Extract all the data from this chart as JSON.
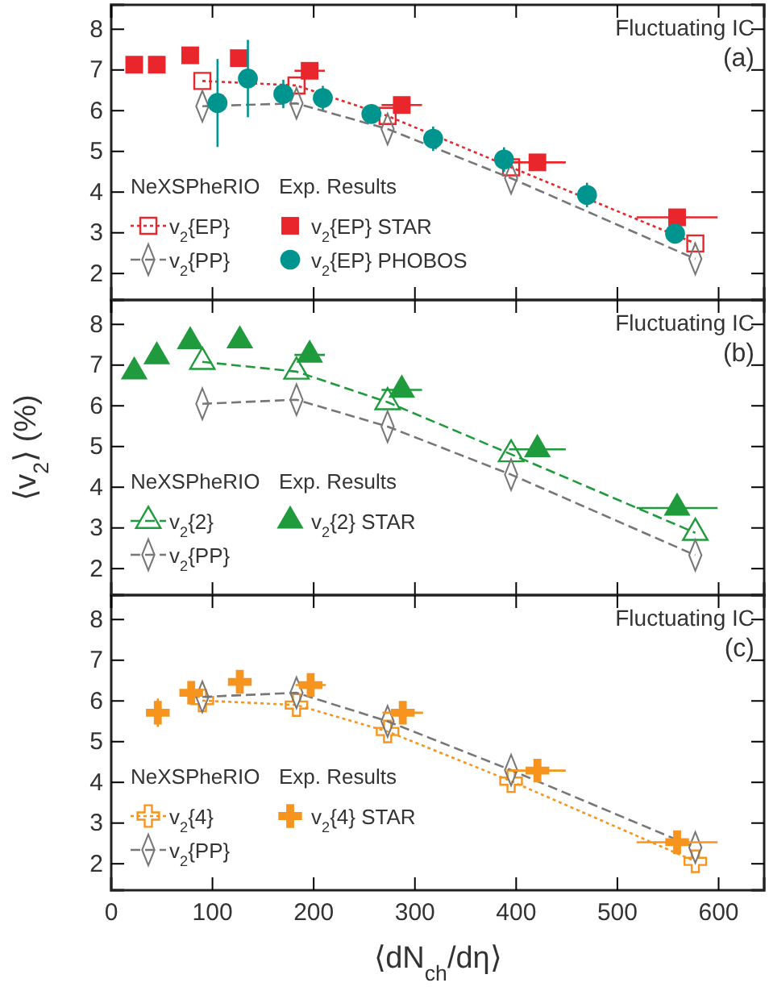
{
  "chart_data": [
    {
      "type": "scatter",
      "xlim": [
        0,
        645
      ],
      "ylim": [
        1.35,
        8.6
      ],
      "yticks": [
        2,
        3,
        4,
        5,
        6,
        7,
        8
      ],
      "xticks": [
        0,
        100,
        200,
        300,
        400,
        500,
        600
      ],
      "tick_labels": "y",
      "legend": "bottom left",
      "legend_title": "NeXSPheRIO",
      "annotations": [
        "Fluctuating IC",
        "(a)",
        "Exp. Results"
      ],
      "grid": false,
      "series": [
        {
          "name": "v$_{2}${EP}",
          "type": "line",
          "marker": "square",
          "line_style": "dotted",
          "color": "#e8262b",
          "x": [
            90,
            183,
            273,
            395,
            577
          ],
          "values": [
            6.73,
            6.62,
            5.87,
            4.61,
            2.74
          ]
        },
        {
          "name": "v$_{2}${PP}",
          "type": "line",
          "marker": "diamond",
          "line_style": "dashed",
          "color": "#777777",
          "x": [
            90,
            183,
            273,
            395,
            577
          ],
          "values": [
            6.11,
            6.18,
            5.55,
            4.34,
            2.36
          ]
        },
        {
          "name": "v$_{2}${EP} STAR",
          "marker": "square",
          "color": "#e8262b",
          "x": [
            22.7,
            45,
            78,
            126,
            196,
            287,
            421,
            559
          ],
          "values": [
            7.13,
            7.13,
            7.36,
            7.29,
            6.98,
            6.14,
            4.73,
            3.38
          ],
          "xerrors": [
            null,
            null,
            null,
            null,
            15,
            20,
            28,
            40
          ]
        },
        {
          "name": "v$_{2}${EP} PHOBOS",
          "marker": "circle",
          "color": "#00948f",
          "x": [
            105,
            135,
            170,
            209,
            257,
            318,
            388,
            470,
            557
          ],
          "values": [
            6.19,
            6.79,
            6.41,
            6.31,
            5.92,
            5.31,
            4.8,
            3.93,
            2.98
          ],
          "errors": [
            1.08,
            0.95,
            0.35,
            0.3,
            0.1,
            0.3,
            0.3,
            0.3,
            0.25
          ]
        }
      ]
    },
    {
      "type": "scatter",
      "xlim": [
        0,
        645
      ],
      "ylim": [
        1.35,
        8.6
      ],
      "yticks": [
        2,
        3,
        4,
        5,
        6,
        7,
        8
      ],
      "xticks": [
        0,
        100,
        200,
        300,
        400,
        500,
        600
      ],
      "tick_labels": "y",
      "legend": "bottom left",
      "legend_title": "NeXSPheRIO",
      "annotations": [
        "Fluctuating IC",
        "(b)",
        "Exp. Results"
      ],
      "grid": false,
      "ylabel": "⟨v$_{2}$⟩ (%)",
      "series": [
        {
          "name": "v$_{2}${2}",
          "type": "line",
          "marker": "triangle",
          "line_style": "dashed",
          "color": "#1f9a3c",
          "x": [
            90,
            183,
            273,
            395,
            577
          ],
          "values": [
            7.08,
            6.84,
            6.09,
            4.81,
            2.88
          ]
        },
        {
          "name": "v$_{2}${PP}",
          "type": "line",
          "marker": "diamond",
          "line_style": "dashed",
          "color": "#777777",
          "x": [
            90,
            183,
            273,
            395,
            577
          ],
          "values": [
            6.05,
            6.15,
            5.49,
            4.31,
            2.33
          ]
        },
        {
          "name": "v$_{2}${2} STAR",
          "marker": "triangle",
          "color": "#1f9a3c",
          "x": [
            22.7,
            45,
            78,
            127,
            196,
            287,
            421,
            559
          ],
          "values": [
            6.84,
            7.21,
            7.58,
            7.6,
            7.25,
            6.39,
            4.93,
            3.49
          ],
          "xerrors": [
            null,
            null,
            null,
            null,
            15,
            20,
            28,
            40
          ]
        }
      ]
    },
    {
      "type": "scatter",
      "xlim": [
        0,
        645
      ],
      "ylim": [
        1.35,
        8.6
      ],
      "yticks": [
        2,
        3,
        4,
        5,
        6,
        7,
        8
      ],
      "xticks": [
        0,
        100,
        200,
        300,
        400,
        500,
        600
      ],
      "legend": "bottom left",
      "legend_title": "NeXSPheRIO",
      "annotations": [
        "Fluctuating IC",
        "(c)",
        "Exp. Results"
      ],
      "grid": false,
      "xlabel": "⟨dN$_{ch}$/dη⟩",
      "series": [
        {
          "name": "v$_{2}${4}",
          "type": "line",
          "marker": "cross",
          "line_style": "dotted",
          "color": "#f7941d",
          "x": [
            90,
            183,
            273,
            395,
            577
          ],
          "values": [
            6.01,
            5.9,
            5.25,
            4.03,
            2.06
          ]
        },
        {
          "name": "v$_{2}${PP}",
          "type": "line",
          "marker": "diamond",
          "line_style": "dashed",
          "color": "#777777",
          "x": [
            90,
            183,
            273,
            395,
            577
          ],
          "values": [
            6.1,
            6.2,
            5.5,
            4.3,
            2.4
          ]
        },
        {
          "name": "v$_{2}${4} STAR",
          "marker": "cross",
          "color": "#f7941d",
          "x": [
            46,
            79,
            127,
            197,
            288,
            421,
            559
          ],
          "values": [
            5.71,
            6.2,
            6.47,
            6.39,
            5.71,
            4.29,
            2.53
          ],
          "errors": [
            0.35,
            null,
            null,
            null,
            null,
            null,
            null
          ],
          "xerrors": [
            null,
            null,
            null,
            15,
            20,
            28,
            40
          ]
        }
      ]
    }
  ]
}
